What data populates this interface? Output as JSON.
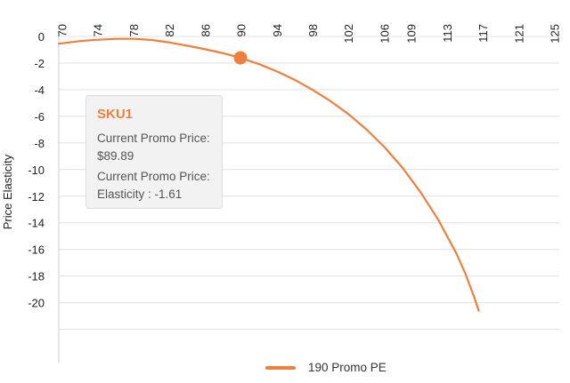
{
  "chart_data": {
    "type": "line",
    "title": "",
    "xlabel": "",
    "ylabel": "Price Elasticity",
    "x_ticks": [
      "70",
      "74",
      "78",
      "82",
      "86",
      "90",
      "94",
      "98",
      "102",
      "106",
      "109",
      "113",
      "117",
      "121",
      "125"
    ],
    "y_ticks": [
      "0",
      "-2",
      "-4",
      "-6",
      "-8",
      "-10",
      "-12",
      "-14",
      "-16",
      "-18",
      "-20"
    ],
    "xlim": [
      69.6,
      125.5
    ],
    "ylim": [
      -24.5,
      0.2
    ],
    "grid": true,
    "legend_position": "bottom",
    "series": [
      {
        "name": "190 Promo PE",
        "color": "#f07f3c",
        "x": [
          69.6,
          72,
          74,
          76,
          78,
          80,
          82,
          84,
          86,
          88,
          89.89,
          92,
          94,
          96,
          98,
          100,
          102,
          104,
          106,
          108,
          110,
          112,
          114,
          115,
          116,
          116.5
        ],
        "y": [
          -0.55,
          -0.35,
          -0.25,
          -0.18,
          -0.18,
          -0.27,
          -0.46,
          -0.7,
          -0.97,
          -1.27,
          -1.61,
          -2.09,
          -2.64,
          -3.28,
          -4.03,
          -4.88,
          -5.86,
          -7.01,
          -8.34,
          -9.88,
          -11.7,
          -13.8,
          -16.3,
          -17.8,
          -19.6,
          -20.6
        ]
      }
    ],
    "highlight_point": {
      "x": 89.89,
      "y": -1.61
    }
  },
  "tooltip": {
    "title": "SKU1",
    "line1": "Current Promo Price:",
    "line2": "$89.89",
    "line3": "Current Promo Price:",
    "line4": "Elasticity : -1.61",
    "title_color": "#f07f3c"
  },
  "legend": {
    "label": "190 Promo PE"
  }
}
